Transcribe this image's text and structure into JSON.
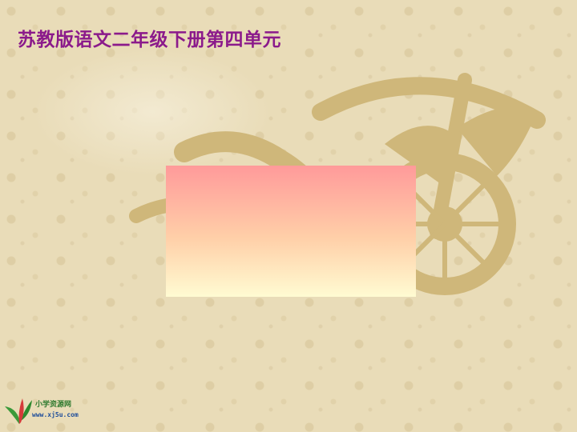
{
  "slide": {
    "title": "苏教版语文二年级下册第四单元",
    "title_color": "#8b1a8b"
  },
  "content_box": {
    "gradient_top": "#ff9a9a",
    "gradient_bottom": "#fffbd2"
  },
  "logo": {
    "name_cn": "小学资源网",
    "url": "www.xj5u.com"
  },
  "background": {
    "color": "#e9dcb8",
    "motif": "ancient-chariot-pattern"
  }
}
